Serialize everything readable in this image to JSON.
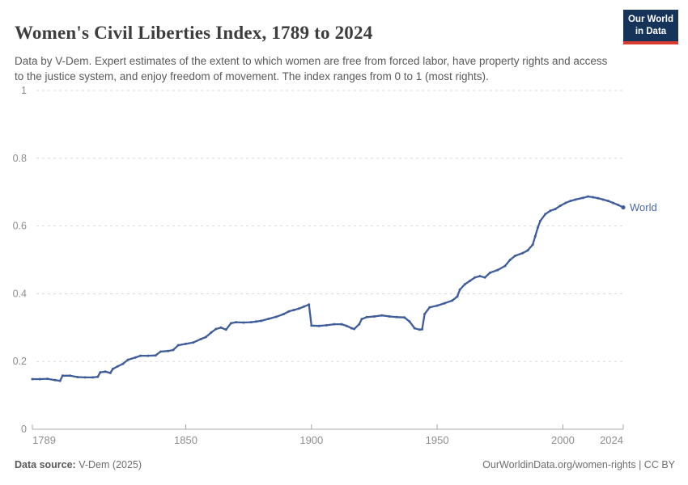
{
  "header": {
    "title": "Women's Civil Liberties Index, 1789 to 2024",
    "subtitle": "Data by V-Dem. Expert estimates of the extent to which women are free from forced labor, have property rights and access to the justice system, and enjoy freedom of movement. The index ranges from 0 to 1 (most rights).",
    "logo": {
      "line1": "Our World",
      "line2": "in Data",
      "bg_color": "#16335a",
      "accent_color": "#d73c32"
    }
  },
  "chart_data": {
    "type": "line",
    "title": "Women's Civil Liberties Index, 1789 to 2024",
    "xlabel": "",
    "ylabel": "",
    "xlim": [
      1789,
      2024
    ],
    "ylim": [
      0,
      1
    ],
    "grid": "horizontal-dashed",
    "legend_position": "end-of-line-label",
    "grid_color": "#d8d8d8",
    "axis_color": "#a8a8a8",
    "tick_label_color": "#8e8e8e",
    "x_ticks": [
      {
        "v": 1789,
        "label": "1789"
      },
      {
        "v": 1850,
        "label": "1850"
      },
      {
        "v": 1900,
        "label": "1900"
      },
      {
        "v": 1950,
        "label": "1950"
      },
      {
        "v": 2000,
        "label": "2000"
      },
      {
        "v": 2024,
        "label": "2024"
      }
    ],
    "y_ticks": [
      {
        "v": 0,
        "label": "0"
      },
      {
        "v": 0.2,
        "label": "0.2"
      },
      {
        "v": 0.4,
        "label": "0.4"
      },
      {
        "v": 0.6,
        "label": "0.6"
      },
      {
        "v": 0.8,
        "label": "0.8"
      },
      {
        "v": 1,
        "label": "1"
      }
    ],
    "series": [
      {
        "name": "World",
        "color": "#3f5c9b",
        "label_color": "#4a67a3",
        "x": [
          1789,
          1792,
          1795,
          1798,
          1800,
          1801,
          1804,
          1807,
          1810,
          1813,
          1815,
          1816,
          1818,
          1820,
          1821,
          1823,
          1825,
          1827,
          1830,
          1832,
          1835,
          1838,
          1840,
          1843,
          1845,
          1847,
          1850,
          1853,
          1856,
          1858,
          1860,
          1862,
          1864,
          1866,
          1868,
          1870,
          1873,
          1876,
          1878,
          1880,
          1883,
          1886,
          1889,
          1891,
          1893,
          1895,
          1897,
          1899,
          1900,
          1903,
          1906,
          1909,
          1912,
          1914,
          1916,
          1917,
          1919,
          1920,
          1922,
          1925,
          1928,
          1931,
          1934,
          1937,
          1939,
          1941,
          1943,
          1944,
          1945,
          1947,
          1950,
          1953,
          1956,
          1958,
          1959,
          1961,
          1963,
          1965,
          1967,
          1969,
          1971,
          1974,
          1977,
          1979,
          1981,
          1984,
          1986,
          1988,
          1989,
          1990,
          1991,
          1993,
          1995,
          1997,
          1999,
          2001,
          2003,
          2005,
          2008,
          2010,
          2012,
          2014,
          2016,
          2018,
          2020,
          2022,
          2024
        ],
        "y": [
          0.148,
          0.148,
          0.149,
          0.145,
          0.143,
          0.158,
          0.158,
          0.154,
          0.153,
          0.153,
          0.155,
          0.168,
          0.17,
          0.166,
          0.178,
          0.186,
          0.193,
          0.205,
          0.212,
          0.217,
          0.217,
          0.218,
          0.229,
          0.231,
          0.234,
          0.248,
          0.252,
          0.256,
          0.266,
          0.272,
          0.285,
          0.296,
          0.3,
          0.294,
          0.313,
          0.316,
          0.315,
          0.316,
          0.318,
          0.32,
          0.326,
          0.332,
          0.34,
          0.348,
          0.352,
          0.356,
          0.362,
          0.368,
          0.306,
          0.305,
          0.307,
          0.31,
          0.31,
          0.305,
          0.298,
          0.296,
          0.31,
          0.325,
          0.331,
          0.333,
          0.336,
          0.333,
          0.331,
          0.33,
          0.318,
          0.298,
          0.294,
          0.295,
          0.34,
          0.36,
          0.365,
          0.372,
          0.38,
          0.392,
          0.412,
          0.428,
          0.438,
          0.448,
          0.452,
          0.448,
          0.462,
          0.47,
          0.482,
          0.5,
          0.512,
          0.52,
          0.528,
          0.545,
          0.57,
          0.595,
          0.615,
          0.635,
          0.645,
          0.65,
          0.66,
          0.668,
          0.674,
          0.678,
          0.683,
          0.687,
          0.685,
          0.682,
          0.678,
          0.674,
          0.668,
          0.662,
          0.655
        ]
      }
    ]
  },
  "footer": {
    "source_label": "Data source:",
    "source_value": " V-Dem (2025)",
    "credit": "OurWorldinData.org/women-rights | CC BY"
  }
}
